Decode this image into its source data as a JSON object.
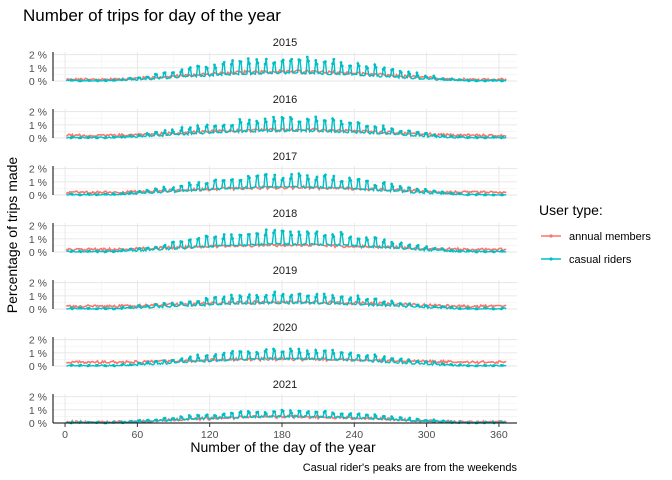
{
  "chart_data": {
    "type": "line",
    "title": "Number of trips for day of the year",
    "xlabel": "Number of the day of the year",
    "ylabel": "Percentage of trips made",
    "caption": "Casual rider's peaks are from the weekends",
    "legend_title": "User type:",
    "legend_position": "right",
    "xlim": [
      -10,
      375
    ],
    "xticks": [
      0,
      60,
      120,
      180,
      240,
      300,
      360
    ],
    "ylim": [
      0,
      2.2
    ],
    "yticks": [
      0,
      1,
      2
    ],
    "ytick_labels": [
      "0 %",
      "1 %",
      "2 %"
    ],
    "grid": true,
    "series_names": [
      "annual members",
      "casual riders"
    ],
    "colors": {
      "annual members": "#f8766d",
      "casual riders": "#00bfc4"
    },
    "panels": [
      {
        "label": "2015",
        "member_peak": 0.75,
        "casual_base": 0.6,
        "casual_peak": 1.8,
        "casual_low_offset": 0,
        "member_winter": 0.12
      },
      {
        "label": "2016",
        "member_peak": 0.65,
        "casual_base": 0.55,
        "casual_peak": 1.55,
        "casual_low_offset": 0,
        "member_winter": 0.2
      },
      {
        "label": "2017",
        "member_peak": 0.6,
        "casual_base": 0.6,
        "casual_peak": 1.55,
        "casual_low_offset": 0,
        "member_winter": 0.2
      },
      {
        "label": "2018",
        "member_peak": 0.55,
        "casual_base": 0.6,
        "casual_peak": 1.65,
        "casual_low_offset": 0,
        "member_winter": 0.2
      },
      {
        "label": "2019",
        "member_peak": 0.55,
        "casual_base": 0.45,
        "casual_peak": 1.2,
        "casual_low_offset": 0,
        "member_winter": 0.22
      },
      {
        "label": "2020",
        "member_peak": 0.55,
        "casual_base": 0.55,
        "casual_peak": 1.25,
        "casual_low_offset": 0,
        "member_winter": 0.3
      },
      {
        "label": "2021",
        "member_peak": 0.5,
        "casual_base": 0.5,
        "casual_peak": 0.95,
        "casual_low_offset": 0,
        "member_winter": 0.08
      }
    ]
  }
}
